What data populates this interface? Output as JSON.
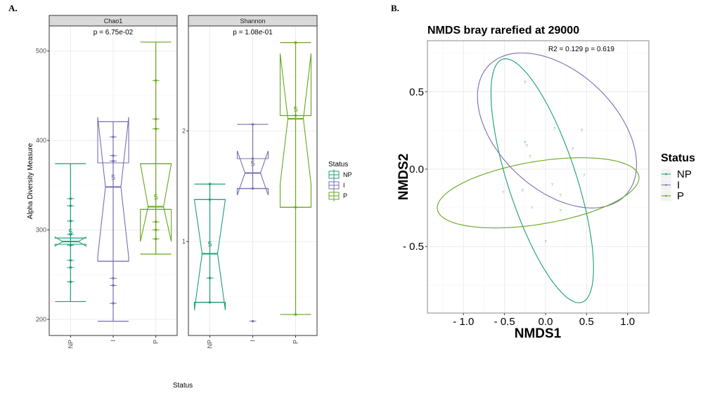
{
  "panel_a": {
    "letter": "A.",
    "legend": {
      "title": "Status",
      "items": [
        "NP",
        "I",
        "P"
      ]
    }
  },
  "panel_b": {
    "letter": "B."
  },
  "colors": {
    "NP": "#1b9e77",
    "I": "#7570b3",
    "P": "#66a61e"
  },
  "chart_data": [
    {
      "type": "boxplot",
      "facet": "Chao1",
      "annotation": "p = 6.75e-02",
      "xlabel": "Status",
      "ylabel": "Alpha Diversity Measure",
      "categories": [
        "NP",
        "I",
        "P"
      ],
      "yticks": [
        200,
        300,
        400,
        500
      ],
      "ylim": [
        182,
        528
      ],
      "notched": true,
      "groups": [
        {
          "name": "NP",
          "n_label": "5",
          "min": 220,
          "q1": 284,
          "median": 287,
          "q3": 291,
          "max": 374,
          "notch": [
            282,
            292
          ],
          "points": [
            242,
            258,
            266,
            283,
            295,
            310,
            327,
            335
          ]
        },
        {
          "name": "I",
          "n_label": "5",
          "min": 198,
          "q1": 265,
          "median": 348,
          "q3": 375,
          "max": 421,
          "notch": [
            270,
            426
          ],
          "points": [
            218,
            238,
            246,
            377,
            383,
            404
          ]
        },
        {
          "name": "P",
          "n_label": "5",
          "min": 273,
          "q1": 323,
          "median": 326,
          "q3": 374,
          "max": 510,
          "notch": [
            287,
            374
          ],
          "points": [
            290,
            300,
            309,
            413,
            424,
            467
          ]
        }
      ]
    },
    {
      "type": "boxplot",
      "facet": "Shannon",
      "annotation": "p = 1.08e-01",
      "categories": [
        "NP",
        "I",
        "P"
      ],
      "yticks": [
        1,
        2
      ],
      "ylim": [
        0.15,
        2.95
      ],
      "notched": true,
      "groups": [
        {
          "name": "NP",
          "n_label": "5",
          "min": 0.45,
          "q1": 0.45,
          "median": 0.89,
          "q3": 1.38,
          "max": 1.52,
          "notch": [
            0.38,
            1.38
          ],
          "points": [
            0.45,
            0.67,
            1.38,
            1.52
          ]
        },
        {
          "name": "I",
          "n_label": "5",
          "min": 1.48,
          "q1": 1.48,
          "median": 1.62,
          "q3": 1.75,
          "max": 2.06,
          "notch": [
            1.42,
            1.82
          ],
          "points": [
            1.48,
            1.75,
            2.06,
            0.28
          ]
        },
        {
          "name": "P",
          "n_label": "5",
          "min": 0.34,
          "q1": 1.31,
          "median": 2.11,
          "q3": 2.14,
          "max": 2.8,
          "notch": [
            1.52,
            2.7
          ],
          "points": [
            0.34,
            1.31,
            2.14,
            2.8
          ]
        }
      ]
    },
    {
      "type": "scatter",
      "title": "NMDS bray rarefied at 29000",
      "annotation": "R2 = 0.129 p = 0.619",
      "xlabel": "NMDS1",
      "ylabel": "NMDS2",
      "xticks": [
        "- 1.0",
        "- 0.5",
        "0.0",
        "0.5",
        "1.0"
      ],
      "xtick_values": [
        -1.0,
        -0.5,
        0.0,
        0.5,
        1.0
      ],
      "yticks": [
        "- 0.5",
        "0.0",
        "0.5"
      ],
      "ytick_values": [
        -0.5,
        0.0,
        0.5
      ],
      "xlim": [
        -1.44,
        1.26
      ],
      "ylim": [
        -0.93,
        0.83
      ],
      "grid": true,
      "legend": {
        "title": "Status",
        "position": "right",
        "items": [
          "NP",
          "I",
          "P"
        ]
      },
      "points": [
        {
          "group": "I",
          "x": -0.25,
          "y": 0.56
        },
        {
          "group": "NP",
          "x": 0.11,
          "y": 0.26
        },
        {
          "group": "I",
          "x": 0.44,
          "y": 0.25
        },
        {
          "group": "NP",
          "x": -0.25,
          "y": 0.17
        },
        {
          "group": "I",
          "x": -0.23,
          "y": 0.15
        },
        {
          "group": "I",
          "x": 0.33,
          "y": 0.13
        },
        {
          "group": "P",
          "x": -0.19,
          "y": 0.08
        },
        {
          "group": "P",
          "x": 0.47,
          "y": -0.04
        },
        {
          "group": "NP",
          "x": 0.08,
          "y": -0.1
        },
        {
          "group": "P",
          "x": -0.52,
          "y": -0.15
        },
        {
          "group": "NP",
          "x": -0.28,
          "y": -0.14
        },
        {
          "group": "P",
          "x": 0.18,
          "y": -0.17
        },
        {
          "group": "P",
          "x": -0.17,
          "y": -0.25
        },
        {
          "group": "NP",
          "x": 0.18,
          "y": -0.27
        },
        {
          "group": "I",
          "x": 0.0,
          "y": -0.47
        }
      ],
      "ellipses": [
        {
          "group": "NP",
          "center": [
            -0.04,
            -0.075
          ],
          "a": [
            0.625,
            -0.565
          ],
          "b": [
            0.0,
            0.55
          ]
        },
        {
          "group": "I",
          "center": [
            0.14,
            0.25
          ],
          "a": [
            0.97,
            -0.22
          ],
          "b": [
            0.0,
            0.45
          ]
        },
        {
          "group": "P",
          "center": [
            -0.09,
            -0.153
          ],
          "a": [
            1.23,
            0.097
          ],
          "b": [
            0.0,
            0.205
          ]
        }
      ]
    }
  ]
}
